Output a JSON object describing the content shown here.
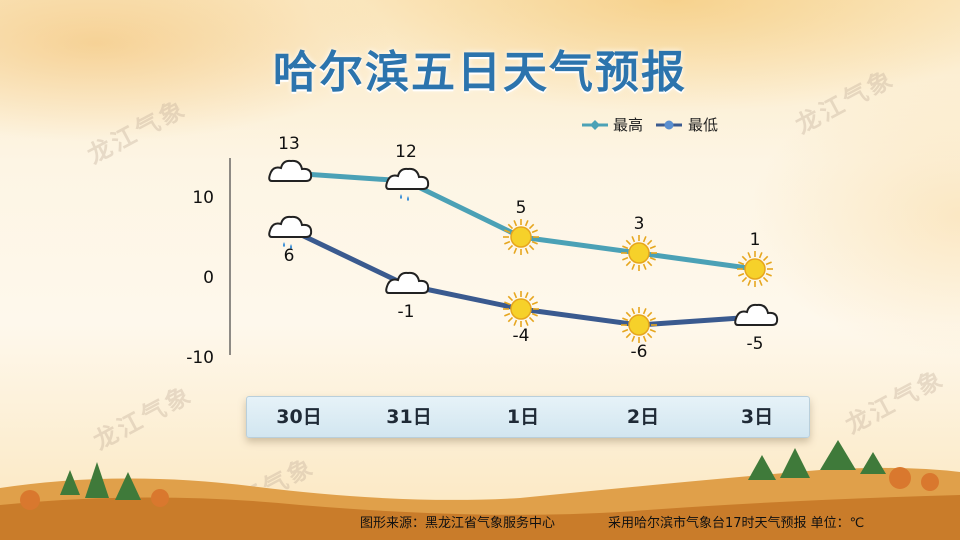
{
  "title": "哈尔滨五日天气预报",
  "watermark": "龙江气象",
  "footer": {
    "source": "图形来源：黑龙江省气象服务中心",
    "note": "采用哈尔滨市气象台17时天气预报 单位：℃"
  },
  "colors": {
    "high_line": "#4ba1b6",
    "low_line": "#3a5a8f",
    "title": "#2c74ad"
  },
  "chart_data": {
    "type": "line",
    "categories": [
      "30日",
      "31日",
      "1日",
      "2日",
      "3日"
    ],
    "series": [
      {
        "name": "最高",
        "values": [
          13,
          12,
          5,
          3,
          1
        ],
        "weather": [
          "cloudy",
          "light-rain",
          "sunny",
          "sunny",
          "sunny"
        ]
      },
      {
        "name": "最低",
        "values": [
          6,
          -1,
          -4,
          -6,
          -5
        ],
        "weather": [
          "light-rain",
          "cloudy",
          "sunny",
          "sunny",
          "cloudy"
        ]
      }
    ],
    "yticks": [
      10,
      0,
      -10
    ],
    "ylim": [
      -10,
      15
    ],
    "legend_position": "top-right",
    "grid": false,
    "unit": "℃"
  }
}
